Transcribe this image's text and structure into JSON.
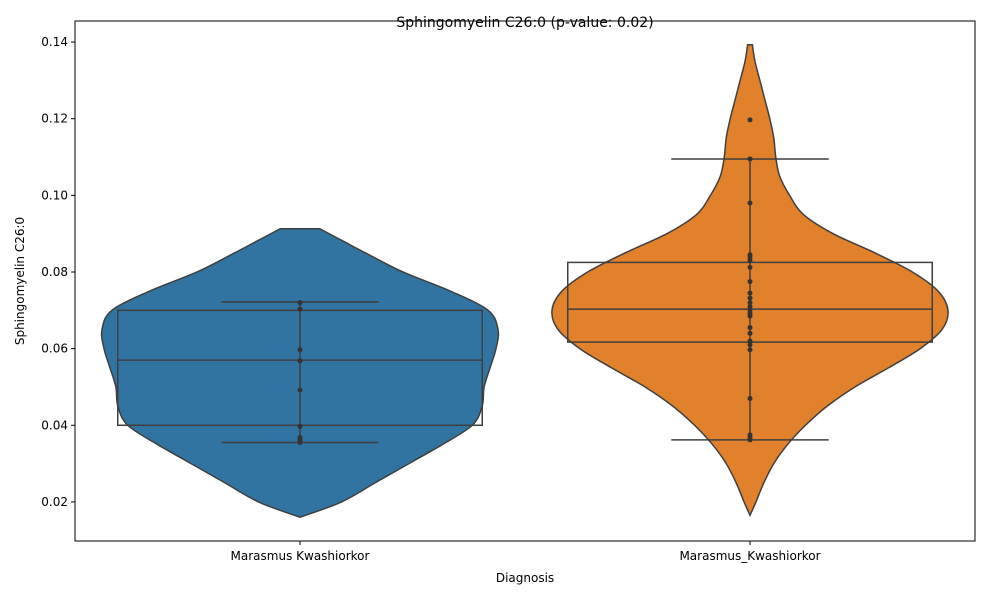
{
  "chart_data": {
    "type": "violin",
    "title": "Sphingomyelin C26:0 (p-value: 0.02)",
    "xlabel": "Diagnosis",
    "ylabel": "Sphingomyelin C26:0",
    "ylim": [
      0.0098,
      0.1455
    ],
    "yticks": [
      0.02,
      0.04,
      0.06,
      0.08,
      0.1,
      0.12,
      0.14
    ],
    "ytick_labels": [
      "0.02",
      "0.04",
      "0.06",
      "0.08",
      "0.10",
      "0.12",
      "0.14"
    ],
    "categories": [
      "Marasmus Kwashiorkor",
      "Marasmus_Kwashiorkor"
    ],
    "grid": false,
    "legend": "none",
    "series": [
      {
        "color": "#3274a1",
        "density": [
          [
            0.016,
            0.0
          ],
          [
            0.02,
            0.21
          ],
          [
            0.025,
            0.38
          ],
          [
            0.03,
            0.55
          ],
          [
            0.035,
            0.72
          ],
          [
            0.04,
            0.87
          ],
          [
            0.045,
            0.92
          ],
          [
            0.05,
            0.93
          ],
          [
            0.055,
            0.96
          ],
          [
            0.06,
            0.99
          ],
          [
            0.065,
            1.0
          ],
          [
            0.07,
            0.95
          ],
          [
            0.075,
            0.76
          ],
          [
            0.08,
            0.52
          ],
          [
            0.085,
            0.33
          ],
          [
            0.088,
            0.22
          ],
          [
            0.0913,
            0.1
          ]
        ],
        "box": {
          "q1": 0.04,
          "median": 0.057,
          "q3": 0.07,
          "whisker_low": 0.0355,
          "whisker_high": 0.0722
        },
        "points": [
          0.0355,
          0.0358,
          0.0363,
          0.0368,
          0.0397,
          0.0492,
          0.0568,
          0.0597,
          0.0703,
          0.072
        ]
      },
      {
        "color": "#e1812c",
        "density": [
          [
            0.0165,
            0.0
          ],
          [
            0.02,
            0.03
          ],
          [
            0.025,
            0.07
          ],
          [
            0.03,
            0.12
          ],
          [
            0.035,
            0.19
          ],
          [
            0.04,
            0.28
          ],
          [
            0.045,
            0.39
          ],
          [
            0.05,
            0.53
          ],
          [
            0.055,
            0.7
          ],
          [
            0.06,
            0.86
          ],
          [
            0.065,
            0.97
          ],
          [
            0.07,
            1.0
          ],
          [
            0.075,
            0.95
          ],
          [
            0.08,
            0.82
          ],
          [
            0.085,
            0.63
          ],
          [
            0.09,
            0.42
          ],
          [
            0.095,
            0.27
          ],
          [
            0.1,
            0.2
          ],
          [
            0.105,
            0.15
          ],
          [
            0.11,
            0.13
          ],
          [
            0.115,
            0.12
          ],
          [
            0.12,
            0.1
          ],
          [
            0.125,
            0.075
          ],
          [
            0.13,
            0.05
          ],
          [
            0.135,
            0.025
          ],
          [
            0.1393,
            0.012
          ]
        ],
        "box": {
          "q1": 0.0617,
          "median": 0.0703,
          "q3": 0.0825,
          "whisker_low": 0.0362,
          "whisker_high": 0.1095
        },
        "points": [
          0.0362,
          0.0368,
          0.0375,
          0.047,
          0.0597,
          0.061,
          0.062,
          0.064,
          0.0655,
          0.0685,
          0.0692,
          0.07,
          0.071,
          0.072,
          0.0732,
          0.0745,
          0.0775,
          0.0812,
          0.083,
          0.0838,
          0.0845,
          0.098,
          0.1095,
          0.1197
        ]
      }
    ]
  }
}
